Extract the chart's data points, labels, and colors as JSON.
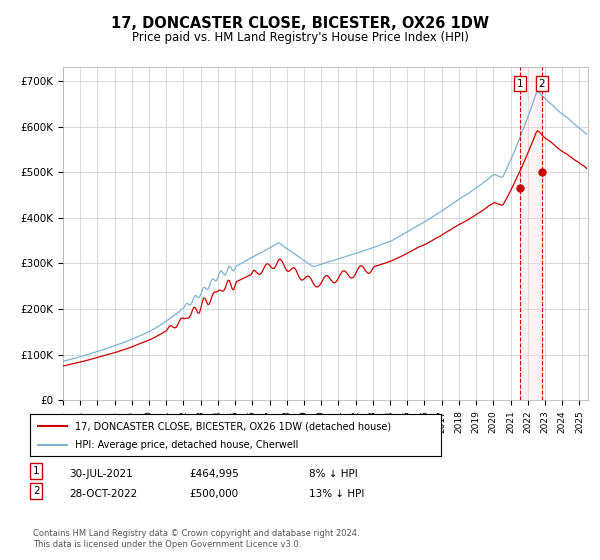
{
  "title": "17, DONCASTER CLOSE, BICESTER, OX26 1DW",
  "subtitle": "Price paid vs. HM Land Registry's House Price Index (HPI)",
  "ylabel_ticks": [
    "£0",
    "£100K",
    "£200K",
    "£300K",
    "£400K",
    "£500K",
    "£600K",
    "£700K"
  ],
  "ytick_values": [
    0,
    100000,
    200000,
    300000,
    400000,
    500000,
    600000,
    700000
  ],
  "ylim": [
    0,
    730000
  ],
  "xlim_start": 1995.0,
  "xlim_end": 2025.5,
  "hpi_color": "#7ab3d4",
  "price_color": "#cc0000",
  "vline_color": "#cc0000",
  "sale1_date_num": 2021.57,
  "sale1_price": 464995,
  "sale2_date_num": 2022.83,
  "sale2_price": 500000,
  "legend1_label": "17, DONCASTER CLOSE, BICESTER, OX26 1DW (detached house)",
  "legend2_label": "HPI: Average price, detached house, Cherwell",
  "grid_color": "#cccccc",
  "footnote": "Contains HM Land Registry data © Crown copyright and database right 2024.\nThis data is licensed under the Open Government Licence v3.0."
}
